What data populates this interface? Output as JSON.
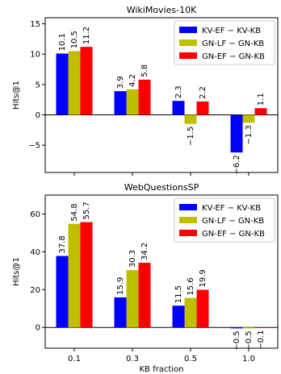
{
  "chart_data": [
    {
      "type": "bar",
      "title": "WikiMovies-10K",
      "ylabel": "Hits@1",
      "xlabel": "",
      "ylim": [
        -9.5,
        16
      ],
      "yticks": [
        -5,
        0,
        5,
        10,
        15
      ],
      "categories": [
        "0.1",
        "0.3",
        "0.5",
        "1.0"
      ],
      "show_x_tick_labels": false,
      "legend_position": "upper right",
      "series": [
        {
          "name": "KV-EF − KV-KB",
          "color": "#0000ff",
          "values": [
            10.1,
            3.9,
            2.3,
            -6.2
          ]
        },
        {
          "name": "GN-LF − GN-KB",
          "color": "#bfbf00",
          "values": [
            10.5,
            4.2,
            -1.5,
            -1.3
          ]
        },
        {
          "name": "GN-EF − GN-KB",
          "color": "#ff0000",
          "values": [
            11.2,
            5.8,
            2.2,
            1.1
          ]
        }
      ]
    },
    {
      "type": "bar",
      "title": "WebQuestionsSP",
      "ylabel": "Hits@1",
      "xlabel": "KB fraction",
      "ylim": [
        -11,
        70
      ],
      "yticks": [
        0,
        20,
        40,
        60
      ],
      "categories": [
        "0.1",
        "0.3",
        "0.5",
        "1.0"
      ],
      "show_x_tick_labels": true,
      "legend_position": "upper right",
      "series": [
        {
          "name": "KV-EF − KV-KB",
          "color": "#0000ff",
          "values": [
            37.8,
            15.9,
            11.5,
            -0.5
          ]
        },
        {
          "name": "GN-LF − GN-KB",
          "color": "#bfbf00",
          "values": [
            54.8,
            30.3,
            15.6,
            -0.5
          ]
        },
        {
          "name": "GN-EF − GN-KB",
          "color": "#ff0000",
          "values": [
            55.7,
            34.2,
            19.9,
            -0.1
          ]
        }
      ]
    }
  ]
}
